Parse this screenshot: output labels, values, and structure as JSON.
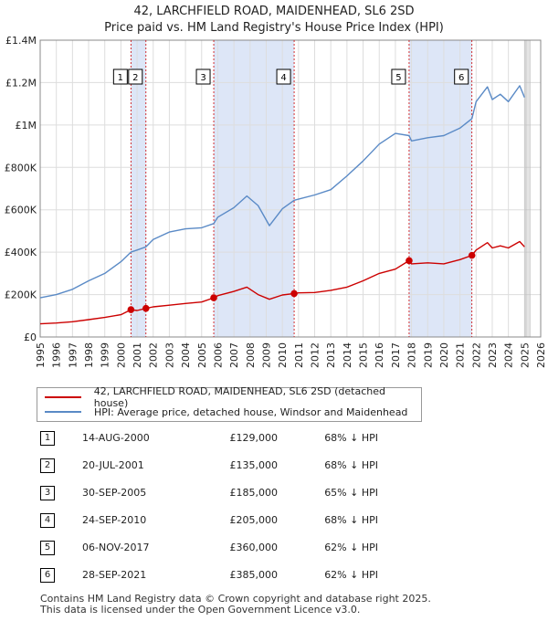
{
  "title_line1": "42, LARCHFIELD ROAD, MAIDENHEAD, SL6 2SD",
  "title_line2": "Price paid vs. HM Land Registry's House Price Index (HPI)",
  "colors": {
    "property": "#cc0000",
    "hpi": "#5a8ac6",
    "band": "#dde6f7",
    "grid": "#dddddd",
    "marker_line": "#cc0000"
  },
  "chart_data": {
    "type": "line",
    "title": "42, LARCHFIELD ROAD, MAIDENHEAD, SL6 2SD",
    "subtitle": "Price paid vs. HM Land Registry's House Price Index (HPI)",
    "xlabel": "",
    "ylabel": "",
    "xlim": [
      1995,
      2026
    ],
    "ylim": [
      0,
      1400000
    ],
    "x_ticks": [
      "1995",
      "1996",
      "1997",
      "1998",
      "1999",
      "2000",
      "2001",
      "2002",
      "2003",
      "2004",
      "2005",
      "2006",
      "2007",
      "2008",
      "2009",
      "2010",
      "2011",
      "2012",
      "2013",
      "2014",
      "2015",
      "2016",
      "2017",
      "2018",
      "2019",
      "2020",
      "2021",
      "2022",
      "2023",
      "2024",
      "2025",
      "2026"
    ],
    "y_ticks": [
      {
        "value": 0,
        "label": "£0"
      },
      {
        "value": 200000,
        "label": "£200K"
      },
      {
        "value": 400000,
        "label": "£400K"
      },
      {
        "value": 600000,
        "label": "£600K"
      },
      {
        "value": 800000,
        "label": "£800K"
      },
      {
        "value": 1000000,
        "label": "£1M"
      },
      {
        "value": 1200000,
        "label": "£1.2M"
      },
      {
        "value": 1400000,
        "label": "£1.4M"
      }
    ],
    "grid": true,
    "shaded_periods": [
      [
        2000.62,
        2001.55
      ],
      [
        2005.75,
        2010.73
      ],
      [
        2017.85,
        2021.74
      ]
    ],
    "forecast_start": 2025.0,
    "series": [
      {
        "name": "42, LARCHFIELD ROAD, MAIDENHEAD, SL6 2SD (detached house)",
        "x": [
          1995,
          1996,
          1997,
          1998,
          1999,
          2000,
          2000.62,
          2001,
          2001.55,
          2002,
          2003,
          2004,
          2005,
          2005.75,
          2006,
          2007,
          2007.8,
          2008.5,
          2009.2,
          2010,
          2010.73,
          2011,
          2012,
          2013,
          2014,
          2015,
          2016,
          2017,
          2017.85,
          2018,
          2019,
          2020,
          2021,
          2021.74,
          2022,
          2022.7,
          2023,
          2023.5,
          2024,
          2024.7,
          2025
        ],
        "values": [
          62000,
          66000,
          72000,
          82000,
          92000,
          105000,
          129000,
          125000,
          135000,
          142000,
          150000,
          158000,
          165000,
          185000,
          195000,
          215000,
          235000,
          200000,
          178000,
          198000,
          205000,
          208000,
          210000,
          220000,
          235000,
          265000,
          300000,
          320000,
          360000,
          345000,
          350000,
          345000,
          365000,
          385000,
          410000,
          445000,
          420000,
          430000,
          420000,
          450000,
          425000
        ]
      },
      {
        "name": "HPI: Average price, detached house, Windsor and Maidenhead",
        "x": [
          1995,
          1996,
          1997,
          1998,
          1999,
          2000,
          2000.62,
          2001,
          2001.55,
          2002,
          2003,
          2004,
          2005,
          2005.75,
          2006,
          2007,
          2007.8,
          2008.5,
          2009.2,
          2010,
          2010.73,
          2011,
          2012,
          2013,
          2014,
          2015,
          2016,
          2017,
          2017.85,
          2018,
          2019,
          2020,
          2021,
          2021.74,
          2022,
          2022.7,
          2023,
          2023.5,
          2024,
          2024.7,
          2025
        ],
        "values": [
          185000,
          200000,
          225000,
          265000,
          300000,
          355000,
          400000,
          410000,
          425000,
          460000,
          495000,
          510000,
          515000,
          535000,
          565000,
          610000,
          665000,
          620000,
          525000,
          605000,
          645000,
          650000,
          670000,
          695000,
          760000,
          830000,
          910000,
          960000,
          950000,
          925000,
          940000,
          950000,
          985000,
          1030000,
          1110000,
          1180000,
          1120000,
          1145000,
          1110000,
          1185000,
          1130000
        ]
      }
    ],
    "sales": [
      {
        "n": "1",
        "x": 2000.62,
        "value": 129000
      },
      {
        "n": "2",
        "x": 2001.55,
        "value": 135000
      },
      {
        "n": "3",
        "x": 2005.75,
        "value": 185000
      },
      {
        "n": "4",
        "x": 2010.73,
        "value": 205000
      },
      {
        "n": "5",
        "x": 2017.85,
        "value": 360000
      },
      {
        "n": "6",
        "x": 2021.74,
        "value": 385000
      }
    ]
  },
  "legend": {
    "property": "42, LARCHFIELD ROAD, MAIDENHEAD, SL6 2SD (detached house)",
    "hpi": "HPI: Average price, detached house, Windsor and Maidenhead"
  },
  "sales_table": [
    {
      "n": "1",
      "date": "14-AUG-2000",
      "price": "£129,000",
      "hpi": "68% ↓ HPI"
    },
    {
      "n": "2",
      "date": "20-JUL-2001",
      "price": "£135,000",
      "hpi": "68% ↓ HPI"
    },
    {
      "n": "3",
      "date": "30-SEP-2005",
      "price": "£185,000",
      "hpi": "65% ↓ HPI"
    },
    {
      "n": "4",
      "date": "24-SEP-2010",
      "price": "£205,000",
      "hpi": "68% ↓ HPI"
    },
    {
      "n": "5",
      "date": "06-NOV-2017",
      "price": "£360,000",
      "hpi": "62% ↓ HPI"
    },
    {
      "n": "6",
      "date": "28-SEP-2021",
      "price": "£385,000",
      "hpi": "62% ↓ HPI"
    }
  ],
  "footer": {
    "line1": "Contains HM Land Registry data © Crown copyright and database right 2025.",
    "line2": "This data is licensed under the Open Government Licence v3.0."
  }
}
